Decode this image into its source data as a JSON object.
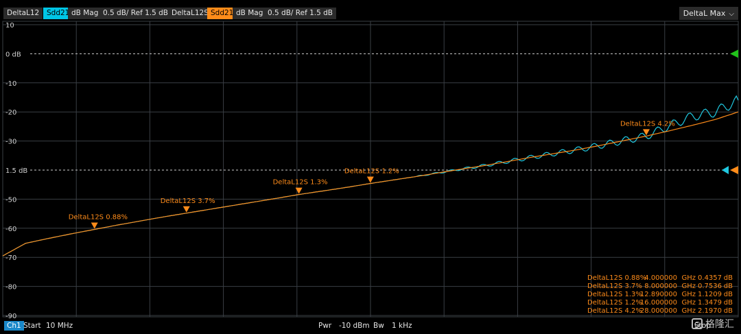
{
  "header": {
    "trace1_name": "DeltaL12",
    "trace1_param": "Sdd21",
    "trace1_format": "dB Mag",
    "trace1_scale": "0.5 dB/ Ref 1.5 dB",
    "trace2_name": "DeltaL12S",
    "trace2_param": "Sdd21",
    "trace2_format": "dB Mag",
    "trace2_scale": "0.5 dB/ Ref 1.5 dB",
    "dropdown_label": "DeltaL Max"
  },
  "footer": {
    "channel": "Ch1",
    "start_label": "Start",
    "start_value": "10 MHz",
    "pwr_label": "Pwr",
    "pwr_value": "-10 dBm",
    "bw_label": "Bw",
    "bw_value": "1 kHz",
    "stop_label": "Stop"
  },
  "watermark": {
    "text": "格隆汇"
  },
  "colors": {
    "background": "#000000",
    "grid": "#3a3f45",
    "trace1": "#20c8e0",
    "trace2": "#ff8c1a",
    "ref_marker": "#21c21a"
  },
  "chart_data": {
    "type": "line",
    "y_ticks": [
      {
        "y": 10,
        "label": "10"
      },
      {
        "y": 0,
        "label": "0 dB"
      },
      {
        "y": -10,
        "label": "-10"
      },
      {
        "y": -20,
        "label": "-20"
      },
      {
        "y": -30,
        "label": "-30"
      },
      {
        "y": -40,
        "label": "1.5 dB"
      },
      {
        "y": -50,
        "label": "-50"
      },
      {
        "y": -60,
        "label": "-60"
      },
      {
        "y": -70,
        "label": "-70"
      },
      {
        "y": -80,
        "label": "-80"
      },
      {
        "y": -90,
        "label": "-90"
      }
    ],
    "ylim": [
      -90,
      10
    ],
    "xlim": [
      0.01,
      32
    ],
    "grid": true,
    "reference_lines": [
      0,
      -40
    ],
    "series": [
      {
        "name": "DeltaL12",
        "x": [
          0.01,
          1,
          2,
          3,
          4,
          5,
          6,
          7,
          8,
          9,
          10,
          11,
          12,
          12.89,
          14,
          15,
          16,
          17,
          18,
          19,
          20,
          21,
          22,
          23,
          24,
          25,
          26,
          27,
          28,
          29,
          30,
          31,
          32
        ],
        "values": [
          -69.5,
          -65.2,
          -63.5,
          -61.9,
          -60.4,
          -58.9,
          -57.5,
          -56.1,
          -54.8,
          -53.5,
          -52.2,
          -50.9,
          -49.6,
          -48.4,
          -47.1,
          -45.9,
          -44.6,
          -43.4,
          -42.2,
          -40.9,
          -39.6,
          -38.4,
          -37.0,
          -35.6,
          -34.3,
          -33.0,
          -31.5,
          -29.9,
          -28.3,
          -24.8,
          -21.5,
          -20.0,
          -16.0
        ]
      },
      {
        "name": "DeltaL12S",
        "x": [
          0.01,
          1,
          2,
          3,
          4,
          5,
          6,
          7,
          8,
          9,
          10,
          11,
          12,
          12.89,
          14,
          15,
          16,
          17,
          18,
          19,
          20,
          21,
          22,
          23,
          24,
          25,
          26,
          27,
          28,
          29,
          30,
          31,
          32
        ],
        "values": [
          -69.5,
          -65.2,
          -63.5,
          -61.9,
          -60.4,
          -58.9,
          -57.5,
          -56.1,
          -54.8,
          -53.5,
          -52.2,
          -50.9,
          -49.6,
          -48.4,
          -47.1,
          -45.9,
          -44.6,
          -43.4,
          -42.2,
          -40.9,
          -39.6,
          -38.4,
          -37.0,
          -35.6,
          -34.3,
          -33.0,
          -31.5,
          -29.9,
          -28.3,
          -26.5,
          -24.6,
          -22.6,
          -20.0
        ]
      }
    ],
    "markers": [
      {
        "label": "DeltaL12S 0.88%",
        "x": 4.0,
        "y": -60.4
      },
      {
        "label": "DeltaL12S 3.7%",
        "x": 8.0,
        "y": -54.8
      },
      {
        "label": "DeltaL12S 1.3%",
        "x": 12.89,
        "y": -48.4
      },
      {
        "label": "DeltaL12S 1.2%",
        "x": 16.0,
        "y": -44.6
      },
      {
        "label": "DeltaL12S 4.2%",
        "x": 28.0,
        "y": -28.3
      }
    ],
    "marker_table": [
      {
        "name": "DeltaL12S 0.88%",
        "freq": "4.000000",
        "unit": "GHz",
        "value": "0.4357",
        "vunit": "dB"
      },
      {
        "name": "DeltaL12S 3.7%",
        "freq": "8.000000",
        "unit": "GHz",
        "value": "0.7536",
        "vunit": "dB"
      },
      {
        "name": "DeltaL12S 1.3%",
        "freq": "12.890000",
        "unit": "GHz",
        "value": "1.1209",
        "vunit": "dB"
      },
      {
        "name": "DeltaL12S 1.2%",
        "freq": "16.000000",
        "unit": "GHz",
        "value": "1.3479",
        "vunit": "dB"
      },
      {
        "name": "DeltaL12S 4.2%",
        "freq": "28.000000",
        "unit": "GHz",
        "value": "2.1970",
        "vunit": "dB"
      }
    ]
  }
}
